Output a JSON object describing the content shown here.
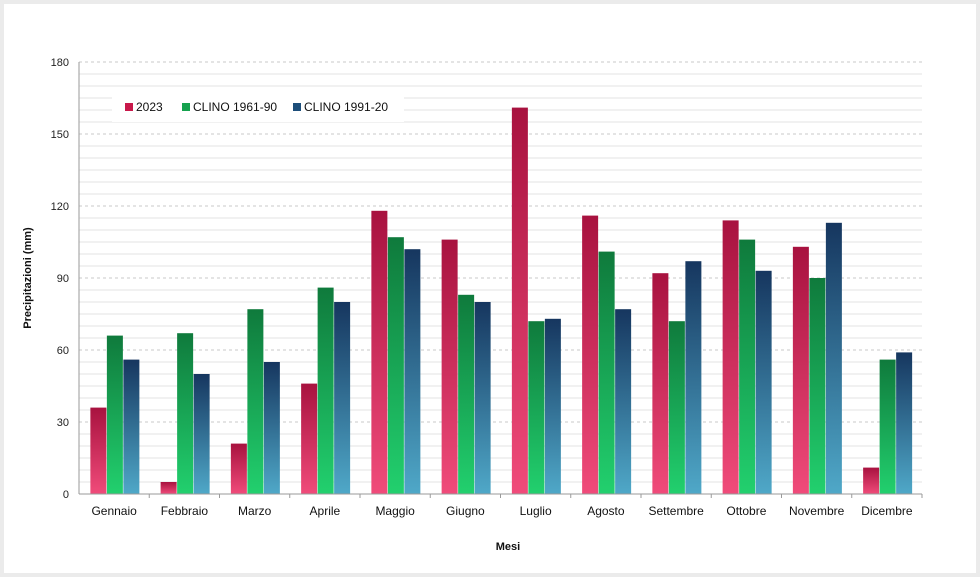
{
  "chart_data": {
    "type": "bar",
    "title": "",
    "xlabel": "Mesi",
    "ylabel": "Precipitazioni (mm)",
    "ylim": [
      0,
      180
    ],
    "yticks": [
      0,
      30,
      60,
      90,
      120,
      150,
      180
    ],
    "grid": true,
    "legend_position": "top-left",
    "categories": [
      "Gennaio",
      "Febbraio",
      "Marzo",
      "Aprile",
      "Maggio",
      "Giugno",
      "Luglio",
      "Agosto",
      "Settembre",
      "Ottobre",
      "Novembre",
      "Dicembre"
    ],
    "series": [
      {
        "name": "2023",
        "color": "#c8184a",
        "values": [
          36,
          5,
          21,
          46,
          118,
          106,
          161,
          116,
          92,
          114,
          103,
          11
        ]
      },
      {
        "name": "CLINO 1961-90",
        "color": "#15a24e",
        "values": [
          66,
          67,
          77,
          86,
          107,
          83,
          72,
          101,
          72,
          106,
          90,
          56
        ]
      },
      {
        "name": "CLINO 1991-20",
        "color": "#1d4e7a",
        "values": [
          56,
          50,
          55,
          80,
          102,
          80,
          73,
          77,
          97,
          93,
          113,
          59
        ]
      }
    ]
  }
}
